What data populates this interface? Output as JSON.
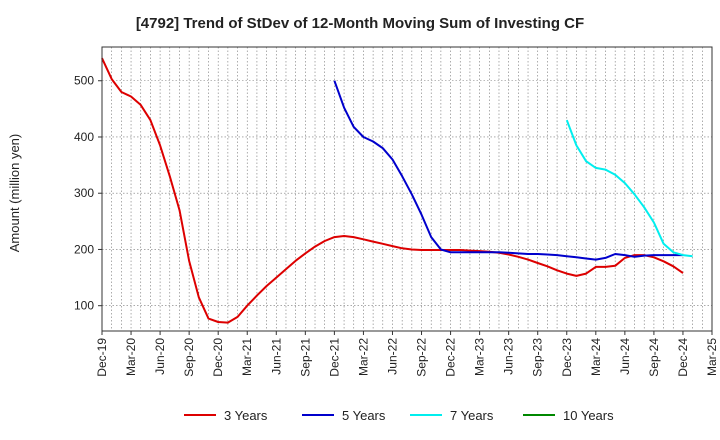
{
  "chart_data": {
    "type": "line",
    "title": "[4792]  Trend of StDev of 12-Month Moving Sum of Investing CF",
    "xlabel": "",
    "ylabel": "Amount (million yen)",
    "ylim": [
      55,
      560
    ],
    "yticks": [
      100,
      200,
      300,
      400,
      500
    ],
    "x_start": "Dec-19",
    "x_ticks": [
      "Dec-19",
      "Mar-20",
      "Jun-20",
      "Sep-20",
      "Dec-20",
      "Mar-21",
      "Jun-21",
      "Sep-21",
      "Dec-21",
      "Mar-22",
      "Jun-22",
      "Sep-22",
      "Dec-22",
      "Mar-23",
      "Jun-23",
      "Sep-23",
      "Dec-23",
      "Mar-24",
      "Jun-24",
      "Sep-24",
      "Dec-24",
      "Mar-25"
    ],
    "grid": true,
    "legend_position": "bottom",
    "series": [
      {
        "name": "3 Years",
        "color": "#dd0000",
        "start_index": 0,
        "values": [
          540,
          503,
          480,
          472,
          457,
          430,
          385,
          330,
          270,
          180,
          115,
          77,
          71,
          70,
          80,
          100,
          118,
          135,
          150,
          165,
          180,
          193,
          205,
          215,
          222,
          224,
          222,
          218,
          214,
          210,
          206,
          202,
          200,
          199,
          199,
          199,
          199,
          199,
          198,
          197,
          196,
          194,
          191,
          187,
          182,
          176,
          170,
          163,
          157,
          153,
          157,
          169,
          169,
          171,
          185,
          190,
          190,
          186,
          179,
          170,
          158
        ]
      },
      {
        "name": "5 Years",
        "color": "#0000cc",
        "start_index": 24,
        "values": [
          500,
          452,
          418,
          400,
          392,
          380,
          360,
          330,
          298,
          262,
          222,
          200,
          195,
          195,
          195,
          195,
          195,
          195,
          194,
          193,
          192,
          192,
          191,
          190,
          188,
          186,
          184,
          182,
          185,
          192,
          190,
          187,
          189,
          190,
          190,
          190,
          190
        ]
      },
      {
        "name": "7 Years",
        "color": "#00eeee",
        "start_index": 48,
        "values": [
          430,
          385,
          357,
          345,
          342,
          333,
          318,
          298,
          275,
          248,
          210,
          195,
          190,
          188
        ]
      },
      {
        "name": "10 Years",
        "color": "#008800",
        "start_index": 0,
        "values": []
      }
    ]
  }
}
